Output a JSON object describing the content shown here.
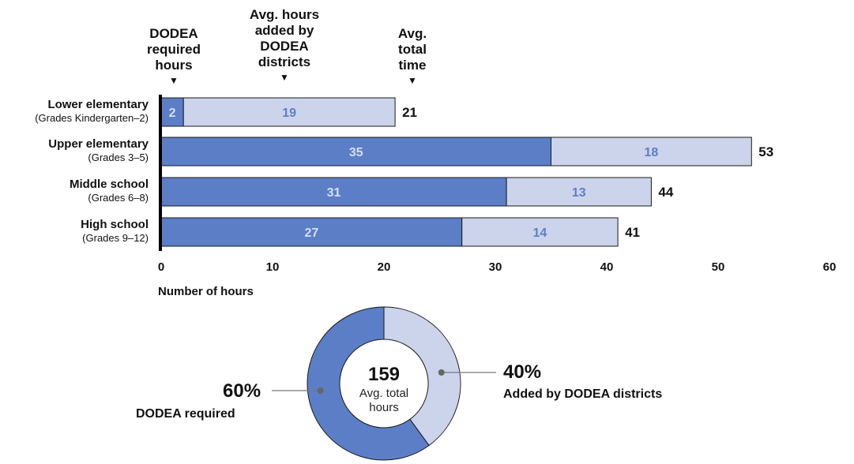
{
  "chart_data": [
    {
      "type": "bar",
      "orientation": "horizontal",
      "stacked": true,
      "column_headers": [
        "DODEA\nrequired\nhours",
        "Avg. hours\nadded by\nDODEA\ndistricts",
        "Avg.\ntotal\ntime"
      ],
      "categories": [
        {
          "name": "Lower elementary",
          "sub": "(Grades Kindergarten–2)"
        },
        {
          "name": "Upper elementary",
          "sub": "(Grades 3–5)"
        },
        {
          "name": "Middle school",
          "sub": "(Grades 6–8)"
        },
        {
          "name": "High school",
          "sub": "(Grades 9–12)"
        }
      ],
      "series": [
        {
          "values": [
            2,
            35,
            31,
            27
          ],
          "color": "#5b7ec7",
          "label_color": "#d7def2"
        },
        {
          "values": [
            19,
            18,
            13,
            14
          ],
          "color": "#ccd4ec",
          "label_color": "#5b7ec7"
        }
      ],
      "totals": [
        21,
        53,
        44,
        41
      ],
      "xlabel": "Number of hours",
      "xlim": [
        0,
        60
      ],
      "xticks": [
        0,
        10,
        20,
        30,
        40,
        50,
        60
      ],
      "grid": false
    },
    {
      "type": "pie",
      "donut": true,
      "center_value": "159",
      "center_label": "Avg. total\nhours",
      "slices": [
        {
          "value": 60,
          "percent_label": "60%",
          "label": "DODEA required",
          "color": "#5b7ec7"
        },
        {
          "value": 40,
          "percent_label": "40%",
          "label": "Added by DODEA districts",
          "color": "#ccd4ec"
        }
      ]
    }
  ]
}
